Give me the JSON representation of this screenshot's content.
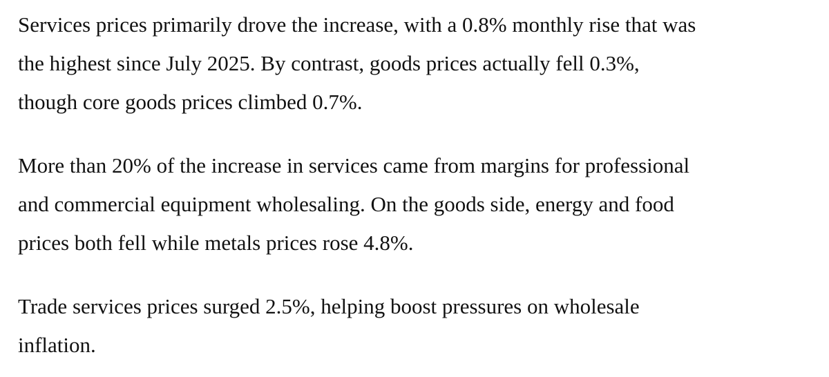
{
  "colors": {
    "background": "#ffffff",
    "text": "#111111"
  },
  "document": {
    "type": "article-excerpt",
    "paragraphs": [
      {
        "text": "Services prices primarily drove the increase, with a 0.8% monthly rise that was\nthe highest since July 2025. By contrast, goods prices actually fell 0.3%,\nthough core goods prices climbed 0.7%."
      },
      {
        "text": "More than 20% of the increase in services came from margins for professional\nand commercial equipment wholesaling. On the goods side, energy and food\nprices both fell while metals prices rose 4.8%."
      },
      {
        "text": "Trade services prices surged 2.5%, helping boost pressures on wholesale\ninflation."
      }
    ],
    "key_figures": {
      "services_monthly_rise_pct": 0.8,
      "services_high_since": "July 2025",
      "goods_prices_change_pct": -0.3,
      "core_goods_change_pct": 0.7,
      "services_increase_share_from_wholesaling_margins_pct": 20,
      "metals_prices_change_pct": 4.8,
      "trade_services_change_pct": 2.5
    }
  }
}
